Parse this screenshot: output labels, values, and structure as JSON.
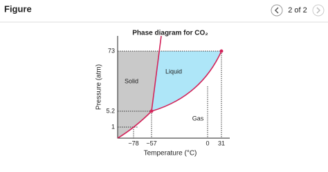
{
  "header": {
    "title": "Figure",
    "pager": "2 of 2"
  },
  "figure": {
    "title": "Phase diagram for CO₂",
    "y_axis_label": "Pressure (atm)",
    "x_axis_label": "Temperature (°C)",
    "y_ticks": [
      "73",
      "5.2",
      "1"
    ],
    "x_ticks": [
      "−78",
      "−57",
      "0",
      "31"
    ],
    "regions": [
      "Solid",
      "Liquid",
      "Gas"
    ]
  }
}
